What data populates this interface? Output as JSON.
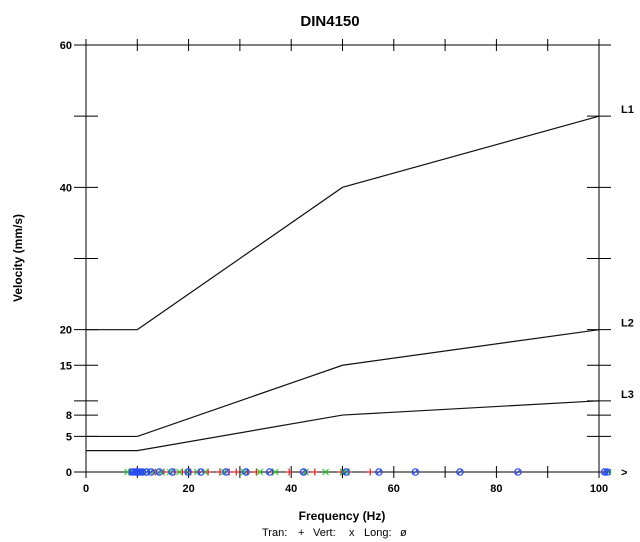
{
  "chart_data": {
    "type": "line",
    "title": "DIN4150",
    "xlabel": "Frequency (Hz)",
    "ylabel": "Velocity (mm/s)",
    "xlim": [
      0,
      100
    ],
    "ylim": [
      0,
      60
    ],
    "x_ticks": [
      0,
      20,
      40,
      60,
      80,
      100
    ],
    "x_tick_labels": [
      "0",
      "20",
      "40",
      "60",
      "80",
      "100"
    ],
    "x_overflow_label": ">",
    "y_ticks": [
      0,
      5,
      8,
      15,
      20,
      40,
      60
    ],
    "y_tick_labels": [
      "0",
      "5",
      "8",
      "15",
      "20",
      "40",
      "60"
    ],
    "series": [
      {
        "name": "L1",
        "x": [
          0,
          10,
          50,
          100
        ],
        "y": [
          20,
          20,
          40,
          50
        ]
      },
      {
        "name": "L2",
        "x": [
          0,
          10,
          50,
          100
        ],
        "y": [
          5,
          5,
          15,
          20
        ]
      },
      {
        "name": "L3",
        "x": [
          0,
          10,
          50,
          100
        ],
        "y": [
          3,
          3,
          8,
          10
        ]
      }
    ],
    "markers": [
      {
        "name": "Tran",
        "symbol": "+",
        "color": "#e21f1f",
        "x": [
          8.5,
          9.6,
          10.8,
          12.1,
          13.5,
          15.2,
          17.3,
          18.8,
          20.4,
          22.1,
          23.8,
          26.1,
          27.9,
          29.3,
          31.5,
          33.2,
          36.4,
          39.6,
          42.7,
          44.6,
          49.7,
          51.1,
          55.4
        ],
        "y": [
          0,
          0,
          0,
          0,
          0,
          0,
          0,
          0,
          0,
          0,
          0,
          0,
          0,
          0,
          0,
          0,
          0,
          0,
          0,
          0,
          0,
          0,
          0
        ]
      },
      {
        "name": "Vert",
        "symbol": "x",
        "color": "#2bd52b",
        "x": [
          8.1,
          8.8,
          9.7,
          10.5,
          11.2,
          12.5,
          13.4,
          14.7,
          16.4,
          18.2,
          19.9,
          21.7,
          23.2,
          26.9,
          30.8,
          33.9,
          36.9,
          42.8,
          46.7,
          50.1,
          50.9,
          101.8
        ],
        "y": [
          0,
          0,
          0,
          0,
          0,
          0,
          0,
          0,
          0,
          0,
          0,
          0,
          0,
          0,
          0,
          0,
          0,
          0,
          0,
          0,
          0,
          0
        ]
      },
      {
        "name": "Long",
        "symbol": "ø",
        "color": "#2645ff",
        "x": [
          9.0,
          9.3,
          9.8,
          10.1,
          10.6,
          11.0,
          11.8,
          12.7,
          14.3,
          16.8,
          19.9,
          22.4,
          27.3,
          31.2,
          35.8,
          42.4,
          50.7,
          57.1,
          64.2,
          72.9,
          84.2,
          101.1,
          101.6
        ],
        "y": [
          0,
          0,
          0,
          0,
          0,
          0,
          0,
          0,
          0,
          0,
          0,
          0,
          0,
          0,
          0,
          0,
          0,
          0,
          0,
          0,
          0,
          0,
          0
        ]
      }
    ],
    "legend": {
      "placement": "bottom-center",
      "items": [
        {
          "name": "Tran",
          "label": "Tran:",
          "symbol": "+",
          "color": "#e21f1f"
        },
        {
          "name": "Vert",
          "label": "Vert:",
          "symbol": "x",
          "color": "#2bd52b"
        },
        {
          "name": "Long",
          "label": "Long:",
          "symbol": "ø",
          "color": "#2645ff"
        }
      ]
    },
    "grid": false
  }
}
